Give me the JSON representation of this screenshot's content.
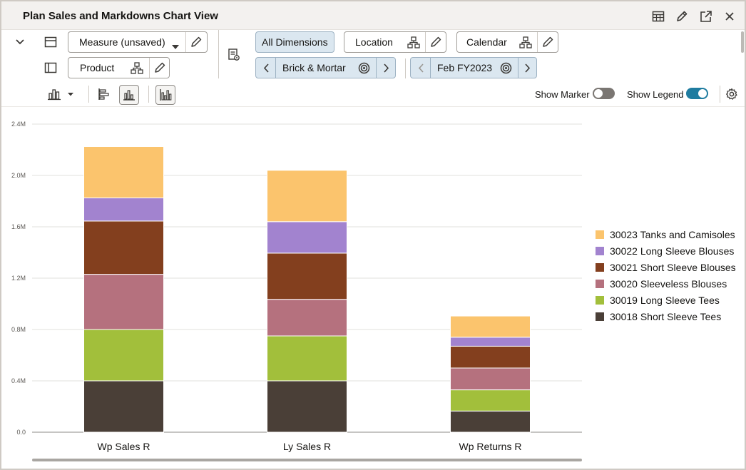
{
  "window": {
    "title": "Plan Sales and Markdowns Chart View"
  },
  "toolbar": {
    "measure_label": "Measure (unsaved)",
    "product_label": "Product",
    "all_dimensions_label": "All Dimensions",
    "location_label": "Location",
    "calendar_label": "Calendar",
    "location_value": "Brick & Mortar",
    "calendar_value": "Feb FY2023",
    "show_marker_label": "Show Marker",
    "show_legend_label": "Show Legend",
    "show_marker_on": false,
    "show_legend_on": true
  },
  "colors": {
    "accent": "#1f7ca0",
    "toggle_off": "#7a7672"
  },
  "chart_data": {
    "type": "bar",
    "stacked": true,
    "categories": [
      "Wp Sales R",
      "Ly Sales R",
      "Wp Returns R"
    ],
    "ylim": [
      0,
      2400000
    ],
    "yticks": [
      0,
      400000,
      800000,
      1200000,
      1600000,
      2000000,
      2400000
    ],
    "ytick_labels": [
      "0.0",
      "0.4M",
      "0.8M",
      "1.2M",
      "1.6M",
      "2.0M",
      "2.4M"
    ],
    "xlabel": "",
    "ylabel": "",
    "grid": true,
    "legend_position": "right",
    "series": [
      {
        "name": "30018 Short Sleeve Tees",
        "color": "#4a3f37",
        "values": [
          400000,
          400000,
          165000
        ]
      },
      {
        "name": "30019 Long Sleeve Tees",
        "color": "#a2bf3b",
        "values": [
          400000,
          350000,
          165000
        ]
      },
      {
        "name": "30020 Sleeveless Blouses",
        "color": "#b5717e",
        "values": [
          430000,
          285000,
          170000
        ]
      },
      {
        "name": "30021 Short Sleeve Blouses",
        "color": "#833f1e",
        "values": [
          415000,
          360000,
          170000
        ]
      },
      {
        "name": "30022 Long Sleeve Blouses",
        "color": "#a283cf",
        "values": [
          180000,
          245000,
          70000
        ]
      },
      {
        "name": "30023 Tanks and Camisoles",
        "color": "#fbc46d",
        "values": [
          400000,
          400000,
          165000
        ]
      }
    ]
  }
}
